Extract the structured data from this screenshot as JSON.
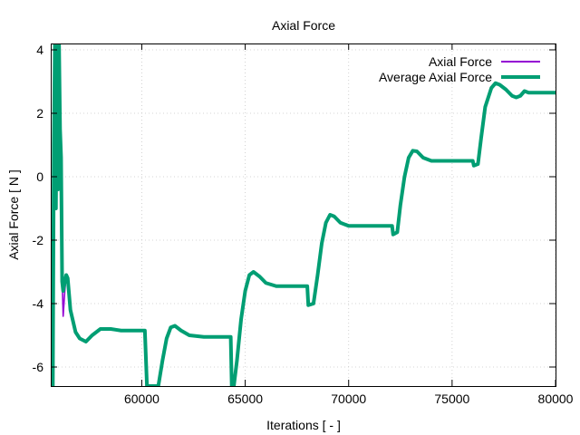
{
  "chart_data": {
    "type": "line",
    "title": "Axial Force",
    "xlabel": "Iterations [ - ]",
    "ylabel": "Axial Force [ N ]",
    "xlim": [
      55600,
      80000
    ],
    "ylim": [
      -6.6,
      4.2
    ],
    "xticks": [
      60000,
      65000,
      70000,
      75000,
      80000
    ],
    "yticks": [
      -6,
      -4,
      -2,
      0,
      2,
      4
    ],
    "grid": true,
    "legend_position": "top-right",
    "series": [
      {
        "name": "Axial Force",
        "color": "#9400d3",
        "points": [
          [
            55700,
            -6.6
          ],
          [
            55750,
            1.0
          ],
          [
            55800,
            4.2
          ],
          [
            55850,
            -1.0
          ],
          [
            55900,
            4.2
          ],
          [
            55950,
            -0.4
          ],
          [
            56000,
            4.2
          ],
          [
            56050,
            1.5
          ],
          [
            56100,
            0.6
          ],
          [
            56150,
            -3.2
          ],
          [
            56200,
            -4.4
          ],
          [
            56280,
            -3.6
          ],
          [
            56350,
            -3.1
          ],
          [
            56420,
            -3.2
          ],
          [
            56550,
            -4.2
          ],
          [
            56800,
            -4.9
          ],
          [
            57000,
            -5.1
          ],
          [
            57300,
            -5.2
          ],
          [
            57600,
            -5.0
          ],
          [
            58000,
            -4.8
          ],
          [
            58500,
            -4.8
          ],
          [
            59000,
            -4.85
          ],
          [
            60000,
            -4.85
          ],
          [
            60150,
            -4.85
          ],
          [
            60250,
            -6.6
          ]
        ]
      },
      {
        "name": "Average Axial Force",
        "color": "#009e73",
        "points": [
          [
            55700,
            -6.6
          ],
          [
            55750,
            1.0
          ],
          [
            55800,
            4.2
          ],
          [
            55850,
            -1.0
          ],
          [
            55900,
            4.2
          ],
          [
            55950,
            -0.4
          ],
          [
            56000,
            4.2
          ],
          [
            56050,
            1.5
          ],
          [
            56100,
            0.6
          ],
          [
            56150,
            -3.3
          ],
          [
            56200,
            -3.6
          ],
          [
            56280,
            -3.3
          ],
          [
            56350,
            -3.1
          ],
          [
            56420,
            -3.2
          ],
          [
            56550,
            -4.2
          ],
          [
            56800,
            -4.9
          ],
          [
            57000,
            -5.1
          ],
          [
            57300,
            -5.2
          ],
          [
            57600,
            -5.0
          ],
          [
            58000,
            -4.8
          ],
          [
            58500,
            -4.8
          ],
          [
            59000,
            -4.85
          ],
          [
            60000,
            -4.85
          ],
          [
            60150,
            -4.85
          ],
          [
            60250,
            -6.6
          ],
          [
            60800,
            -6.6
          ],
          [
            61000,
            -5.8
          ],
          [
            61200,
            -5.1
          ],
          [
            61400,
            -4.75
          ],
          [
            61600,
            -4.7
          ],
          [
            61900,
            -4.85
          ],
          [
            62300,
            -5.0
          ],
          [
            63000,
            -5.05
          ],
          [
            64300,
            -5.05
          ],
          [
            64350,
            -6.6
          ],
          [
            64450,
            -6.6
          ],
          [
            64600,
            -5.8
          ],
          [
            64800,
            -4.5
          ],
          [
            65000,
            -3.6
          ],
          [
            65200,
            -3.1
          ],
          [
            65400,
            -3.0
          ],
          [
            65700,
            -3.15
          ],
          [
            66000,
            -3.35
          ],
          [
            66500,
            -3.45
          ],
          [
            68000,
            -3.45
          ],
          [
            68050,
            -4.05
          ],
          [
            68300,
            -4.0
          ],
          [
            68500,
            -3.1
          ],
          [
            68700,
            -2.1
          ],
          [
            68900,
            -1.45
          ],
          [
            69100,
            -1.2
          ],
          [
            69300,
            -1.25
          ],
          [
            69600,
            -1.45
          ],
          [
            70000,
            -1.55
          ],
          [
            72100,
            -1.55
          ],
          [
            72150,
            -1.82
          ],
          [
            72350,
            -1.75
          ],
          [
            72500,
            -0.9
          ],
          [
            72700,
            0.0
          ],
          [
            72900,
            0.6
          ],
          [
            73100,
            0.82
          ],
          [
            73300,
            0.8
          ],
          [
            73600,
            0.6
          ],
          [
            74000,
            0.5
          ],
          [
            76000,
            0.5
          ],
          [
            76050,
            0.35
          ],
          [
            76250,
            0.4
          ],
          [
            76400,
            1.2
          ],
          [
            76600,
            2.2
          ],
          [
            76900,
            2.8
          ],
          [
            77100,
            2.95
          ],
          [
            77300,
            2.9
          ],
          [
            77600,
            2.75
          ],
          [
            77900,
            2.55
          ],
          [
            78100,
            2.5
          ],
          [
            78300,
            2.55
          ],
          [
            78500,
            2.7
          ],
          [
            78700,
            2.65
          ],
          [
            80000,
            2.65
          ]
        ]
      }
    ]
  }
}
